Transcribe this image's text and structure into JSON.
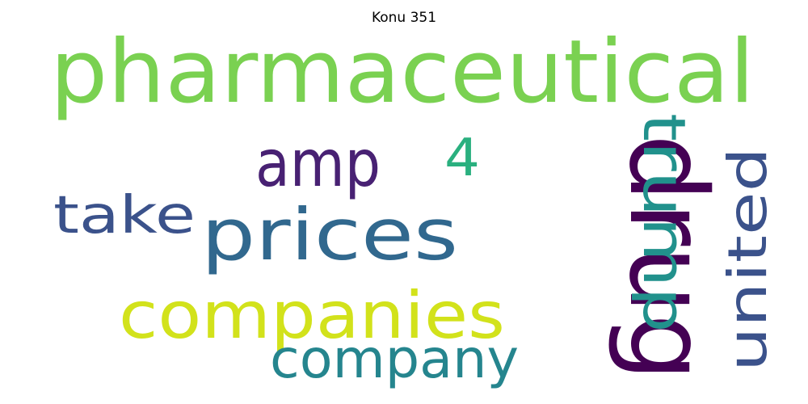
{
  "title": "Konu 351",
  "words": [
    {
      "text": "pharmaceutical",
      "color": "#7ad151"
    },
    {
      "text": "drug",
      "color": "#440154"
    },
    {
      "text": "prices",
      "color": "#31688e"
    },
    {
      "text": "companies",
      "color": "#d2e21b"
    },
    {
      "text": "amp",
      "color": "#482173"
    },
    {
      "text": "trump",
      "color": "#21918c"
    },
    {
      "text": "united",
      "color": "#3b528b"
    },
    {
      "text": "company",
      "color": "#25858e"
    },
    {
      "text": "take",
      "color": "#3b528b"
    },
    {
      "text": "4",
      "color": "#2ab07f"
    }
  ]
}
